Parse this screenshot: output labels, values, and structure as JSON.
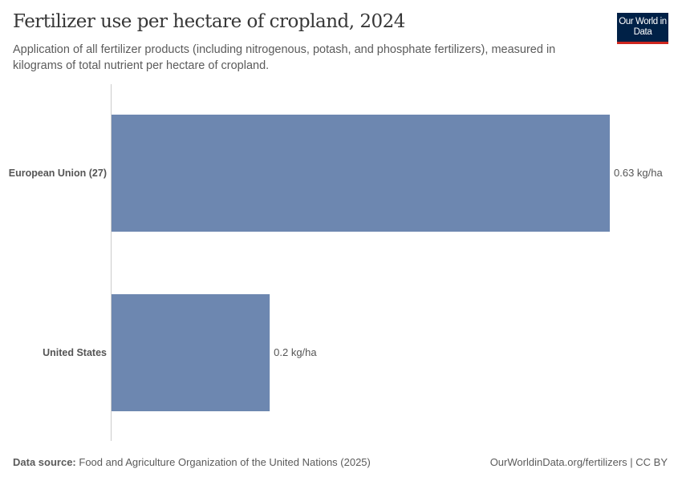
{
  "header": {
    "title": "Fertilizer use per hectare of cropland, 2024",
    "subtitle": "Application of all fertilizer products (including nitrogenous, potash, and phosphate fertilizers), measured in kilograms of total nutrient per hectare of cropland.",
    "logo": "Our World in Data"
  },
  "chart_data": {
    "type": "bar",
    "orientation": "horizontal",
    "title": "Fertilizer use per hectare of cropland, 2024",
    "categories": [
      "European Union (27)",
      "United States"
    ],
    "values": [
      0.63,
      0.2
    ],
    "value_labels": [
      "0.63 kg/ha",
      "0.2 kg/ha"
    ],
    "unit": "kg/ha",
    "xlim": [
      0,
      0.63
    ],
    "color": "#6d87b0"
  },
  "footer": {
    "source_label": "Data source:",
    "source": "Food and Agriculture Organization of the United Nations (2025)",
    "link": "OurWorldinData.org/fertilizers | CC BY"
  }
}
